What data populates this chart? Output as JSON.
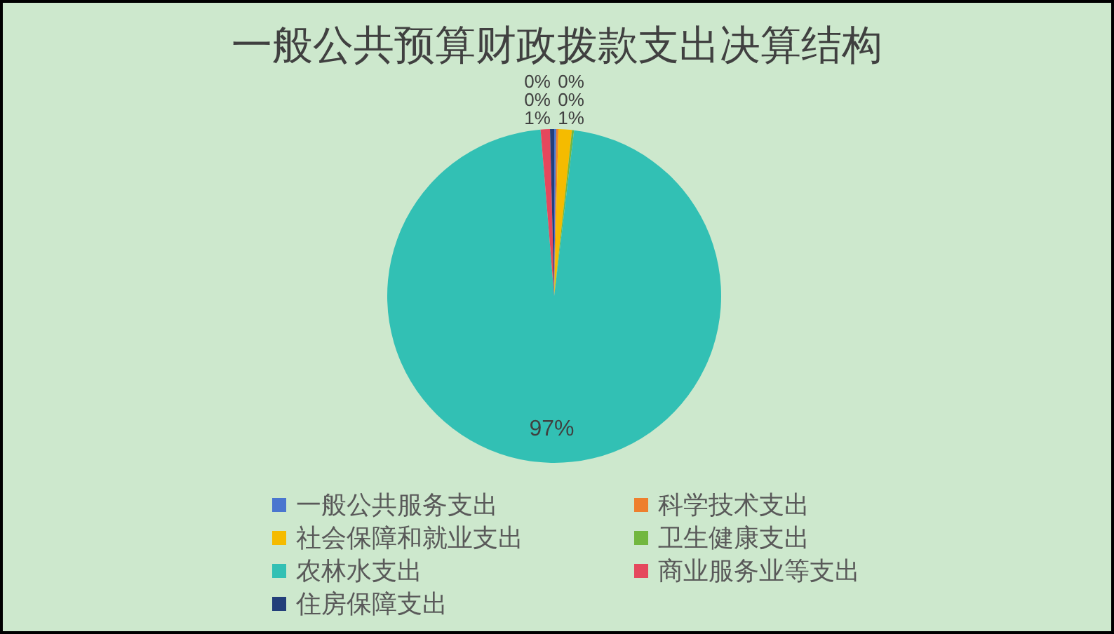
{
  "chart_data": {
    "type": "pie",
    "title": "一般公共预算财政拨款支出决算结构",
    "categories": [
      "一般公共服务支出",
      "科学技术支出",
      "社会保障和就业支出",
      "卫生健康支出",
      "农林水支出",
      "商业服务业等支出",
      "住房保障支出"
    ],
    "values": [
      0.2,
      0.2,
      1.3,
      0.2,
      96.8,
      0.9,
      0.4
    ],
    "colors": [
      "#4a76cf",
      "#ee7f2d",
      "#f5bb00",
      "#72b73f",
      "#32c0b4",
      "#e5485d",
      "#233f7a"
    ],
    "value_labels": [
      "0%",
      "0%",
      "1%",
      "0%",
      "97%",
      "1%",
      "0%"
    ],
    "legend": "bottom"
  }
}
